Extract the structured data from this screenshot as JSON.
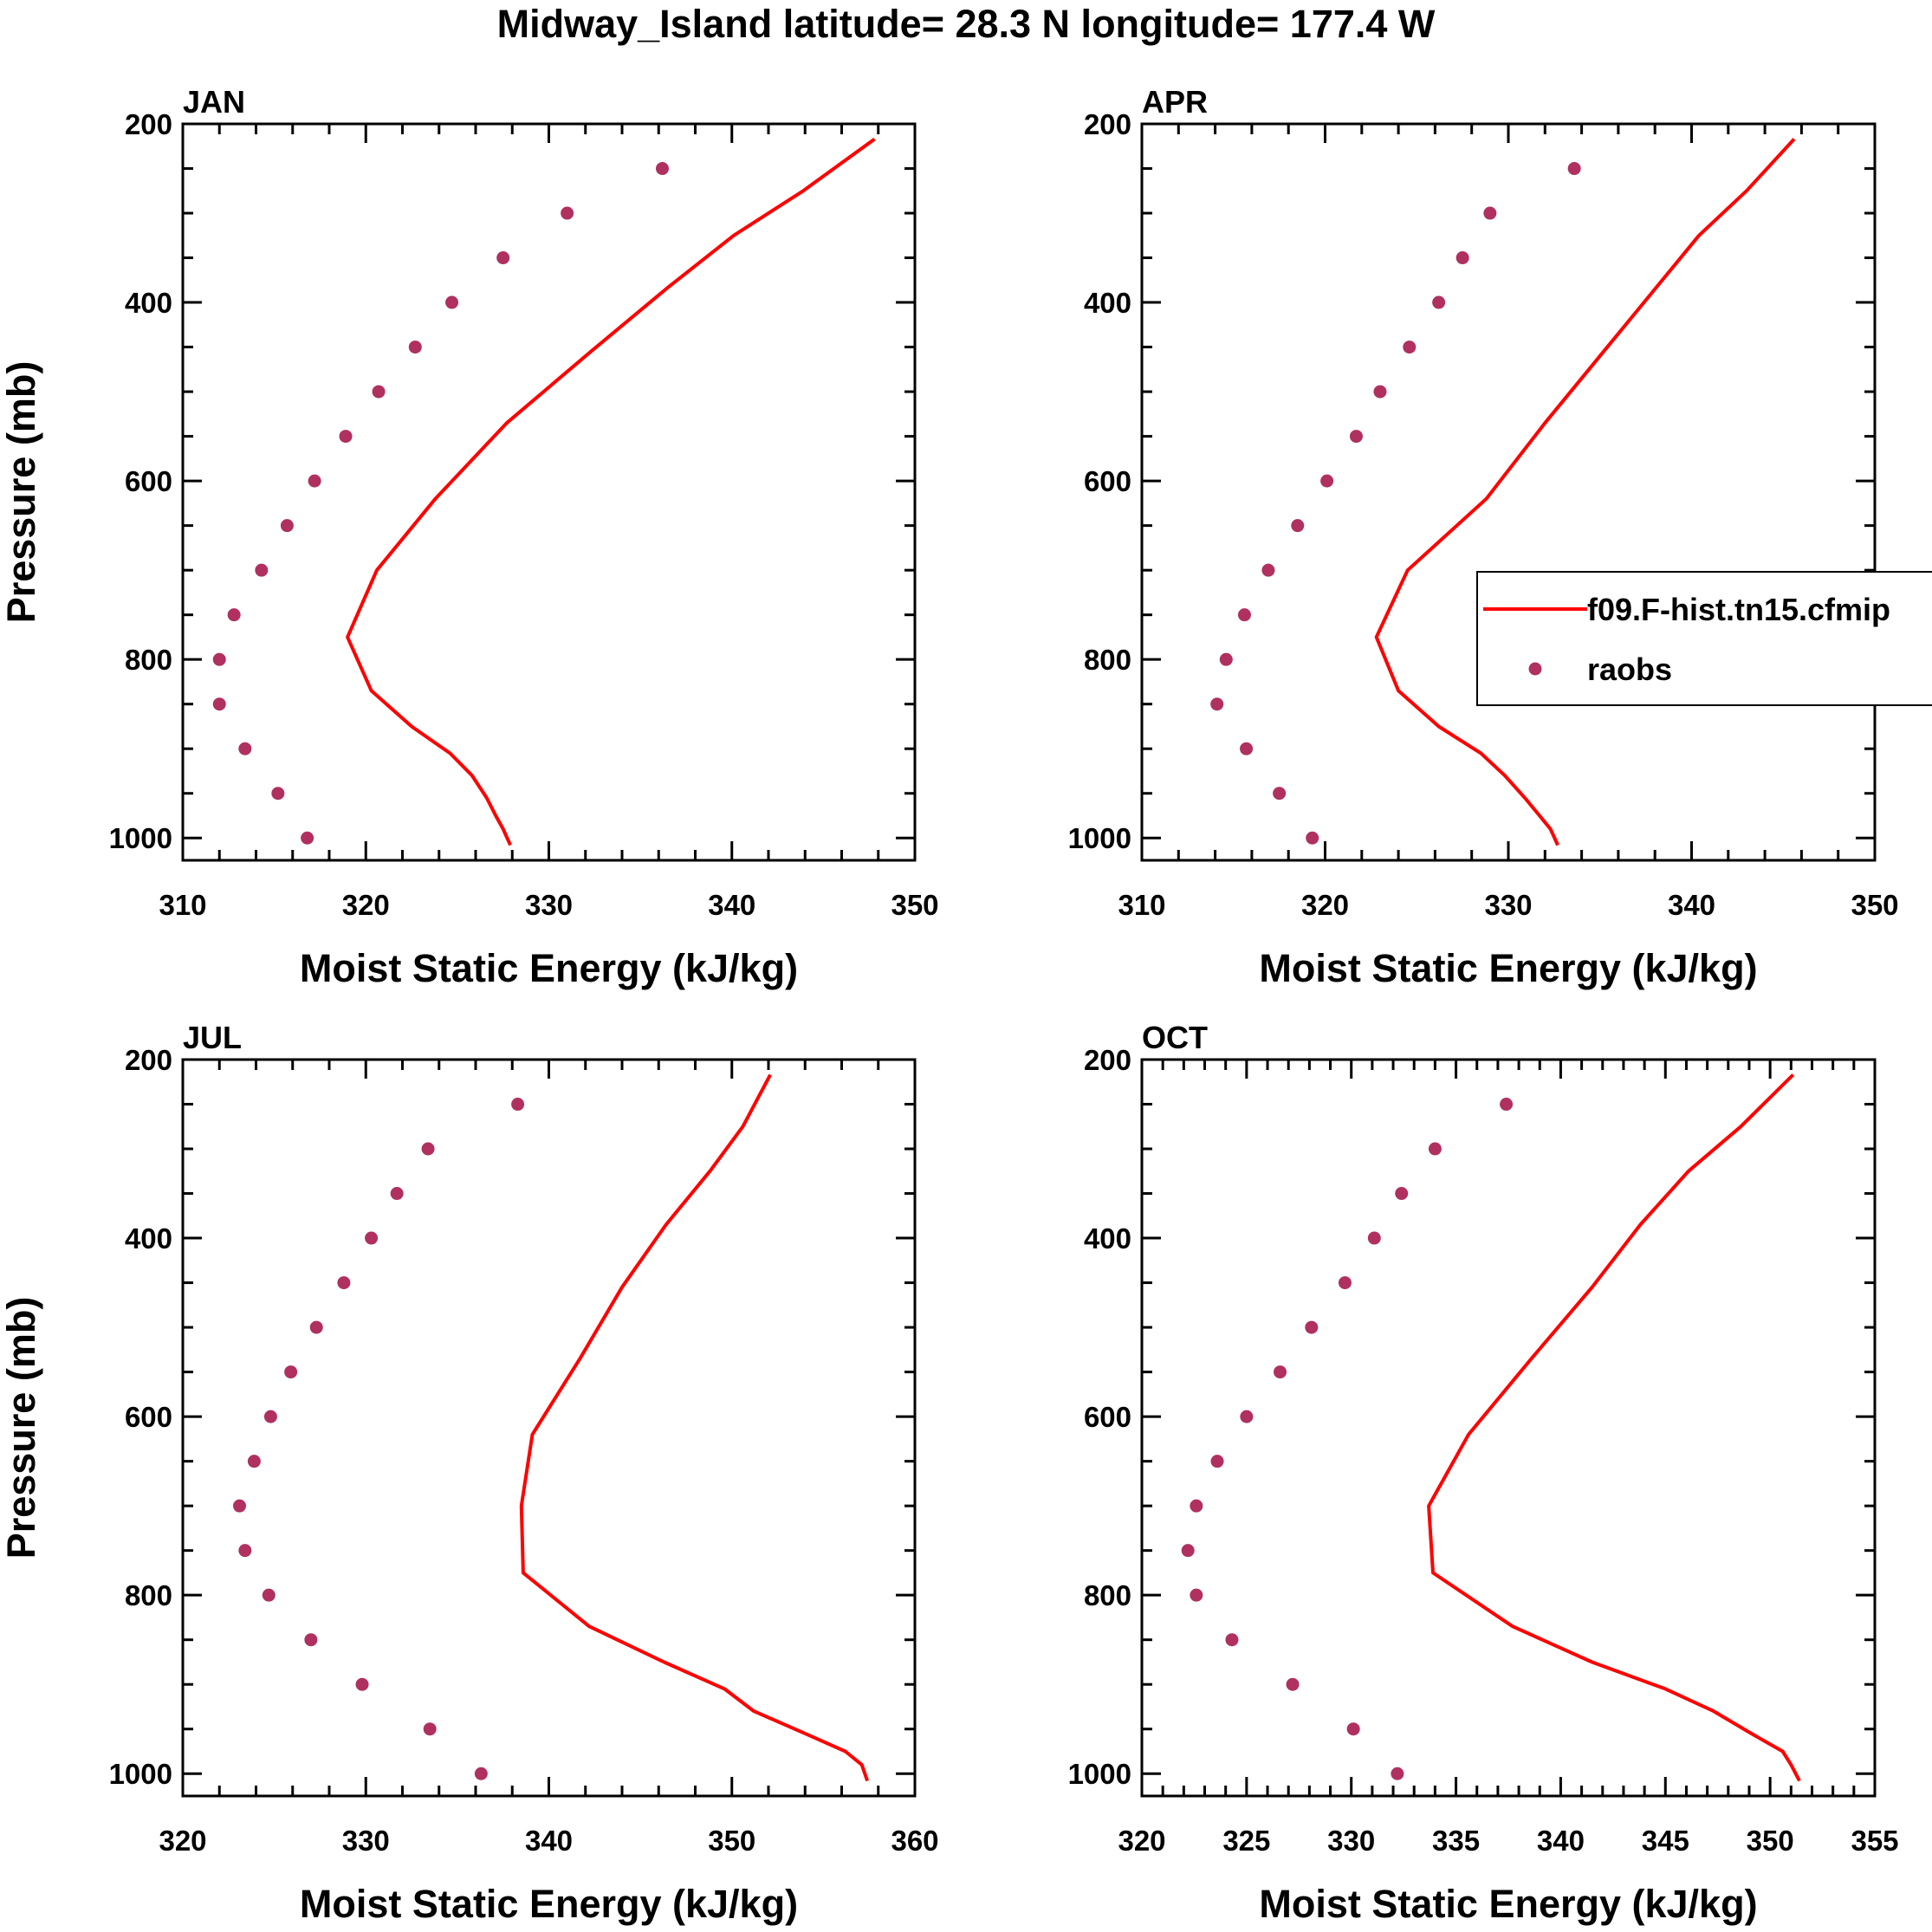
{
  "figure_title": "Midway_Island  latitude= 28.3 N longitude= 177.4 W",
  "legend": {
    "model_label": "f09.F-hist.tn15.cfmip",
    "obs_label": "raobs"
  },
  "colors": {
    "model_line": "#ff0000",
    "obs_marker": "#b03060",
    "axes": "#000000"
  },
  "chart_data": [
    {
      "type": "line",
      "title": "JAN",
      "xlabel": "Moist Static Energy (kJ/kg)",
      "ylabel": "Pressure (mb)",
      "xlim": [
        310,
        350
      ],
      "ylim": [
        1025,
        200
      ],
      "x_ticks": [
        310,
        320,
        330,
        340,
        350
      ],
      "y_ticks": [
        200,
        400,
        600,
        800,
        1000
      ],
      "series": [
        {
          "name": "f09.F-hist.tn15.cfmip",
          "kind": "line",
          "pressure": [
            217,
            275,
            325,
            385,
            455,
            535,
            620,
            700,
            775,
            835,
            875,
            905,
            930,
            955,
            975,
            990,
            1008
          ],
          "values": [
            347.8,
            343.9,
            340.1,
            336.4,
            332.3,
            327.7,
            323.8,
            320.6,
            319.0,
            320.3,
            322.5,
            324.6,
            325.8,
            326.6,
            327.1,
            327.5,
            327.9
          ]
        },
        {
          "name": "raobs",
          "kind": "scatter",
          "pressure": [
            250,
            300,
            350,
            400,
            450,
            500,
            550,
            600,
            650,
            700,
            750,
            800,
            850,
            900,
            950,
            1000
          ],
          "values": [
            336.2,
            331.0,
            327.5,
            324.7,
            322.7,
            320.7,
            318.9,
            317.2,
            315.7,
            314.3,
            312.8,
            312.0,
            312.0,
            313.4,
            315.2,
            316.8
          ]
        }
      ]
    },
    {
      "type": "line",
      "title": "APR",
      "xlabel": "Moist Static Energy (kJ/kg)",
      "ylabel": "",
      "xlim": [
        310,
        350
      ],
      "ylim": [
        1025,
        200
      ],
      "x_ticks": [
        310,
        320,
        330,
        340,
        350
      ],
      "y_ticks": [
        200,
        400,
        600,
        800,
        1000
      ],
      "series": [
        {
          "name": "f09.F-hist.tn15.cfmip",
          "kind": "line",
          "pressure": [
            217,
            275,
            325,
            385,
            455,
            535,
            620,
            700,
            775,
            835,
            875,
            905,
            930,
            955,
            975,
            990,
            1008
          ],
          "values": [
            345.6,
            343.0,
            340.4,
            338.0,
            335.2,
            332.0,
            328.8,
            324.5,
            322.8,
            324.0,
            326.2,
            328.5,
            329.8,
            330.9,
            331.7,
            332.3,
            332.7
          ]
        },
        {
          "name": "raobs",
          "kind": "scatter",
          "pressure": [
            250,
            300,
            350,
            400,
            450,
            500,
            550,
            600,
            650,
            700,
            750,
            800,
            850,
            900,
            950,
            1000
          ],
          "values": [
            333.6,
            329.0,
            327.5,
            326.2,
            324.6,
            323.0,
            321.7,
            320.1,
            318.5,
            316.9,
            315.6,
            314.6,
            314.1,
            315.7,
            317.5,
            319.3
          ]
        }
      ]
    },
    {
      "type": "line",
      "title": "JUL",
      "xlabel": "Moist Static Energy (kJ/kg)",
      "ylabel": "Pressure (mb)",
      "xlim": [
        320,
        360
      ],
      "ylim": [
        1025,
        200
      ],
      "x_ticks": [
        320,
        330,
        340,
        350,
        360
      ],
      "y_ticks": [
        200,
        400,
        600,
        800,
        1000
      ],
      "series": [
        {
          "name": "f09.F-hist.tn15.cfmip",
          "kind": "line",
          "pressure": [
            217,
            275,
            325,
            385,
            455,
            535,
            620,
            700,
            775,
            835,
            875,
            905,
            930,
            955,
            975,
            990,
            1008
          ],
          "values": [
            352.1,
            350.6,
            348.8,
            346.4,
            344.0,
            341.7,
            339.1,
            338.5,
            338.6,
            342.2,
            346.3,
            349.6,
            351.2,
            354.0,
            356.2,
            357.1,
            357.4
          ]
        },
        {
          "name": "raobs",
          "kind": "scatter",
          "pressure": [
            250,
            300,
            350,
            400,
            450,
            500,
            550,
            600,
            650,
            700,
            750,
            800,
            850,
            900,
            950,
            1000
          ],
          "values": [
            338.3,
            333.4,
            331.7,
            330.3,
            328.8,
            327.3,
            325.9,
            324.8,
            323.9,
            323.1,
            323.4,
            324.7,
            327.0,
            329.8,
            333.5,
            336.3
          ]
        }
      ]
    },
    {
      "type": "line",
      "title": "OCT",
      "xlabel": "Moist Static Energy (kJ/kg)",
      "ylabel": "",
      "xlim": [
        320,
        355
      ],
      "ylim": [
        1025,
        200
      ],
      "x_ticks": [
        320,
        325,
        330,
        335,
        340,
        345,
        350,
        355
      ],
      "y_ticks": [
        200,
        400,
        600,
        800,
        1000
      ],
      "series": [
        {
          "name": "f09.F-hist.tn15.cfmip",
          "kind": "line",
          "pressure": [
            217,
            275,
            325,
            385,
            455,
            535,
            620,
            700,
            775,
            835,
            875,
            905,
            930,
            955,
            975,
            990,
            1008
          ],
          "values": [
            351.1,
            348.6,
            346.1,
            343.8,
            341.5,
            338.6,
            335.6,
            333.7,
            333.9,
            337.7,
            341.5,
            345.0,
            347.3,
            349.1,
            350.6,
            351.0,
            351.4
          ]
        },
        {
          "name": "raobs",
          "kind": "scatter",
          "pressure": [
            250,
            300,
            350,
            400,
            450,
            500,
            550,
            600,
            650,
            700,
            750,
            800,
            850,
            900,
            950,
            1000
          ],
          "values": [
            337.4,
            334.0,
            332.4,
            331.1,
            329.7,
            328.1,
            326.6,
            325.0,
            323.6,
            322.6,
            322.2,
            322.6,
            324.3,
            327.2,
            330.1,
            332.2
          ]
        }
      ]
    }
  ]
}
